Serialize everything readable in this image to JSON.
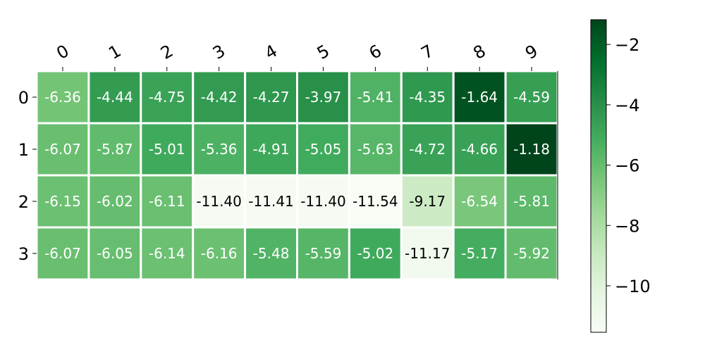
{
  "chart_data": {
    "type": "heatmap",
    "colormap": "Greens",
    "x_categories": [
      "0",
      "1",
      "2",
      "3",
      "4",
      "5",
      "6",
      "7",
      "8",
      "9"
    ],
    "y_categories": [
      "0",
      "1",
      "2",
      "3"
    ],
    "values": [
      [
        -6.36,
        -4.44,
        -4.75,
        -4.42,
        -4.27,
        -3.97,
        -5.41,
        -4.35,
        -1.64,
        -4.59
      ],
      [
        -6.07,
        -5.87,
        -5.01,
        -5.36,
        -4.91,
        -5.05,
        -5.63,
        -4.72,
        -4.66,
        -1.18
      ],
      [
        -6.15,
        -6.02,
        -6.11,
        -11.4,
        -11.41,
        -11.4,
        -11.54,
        -9.17,
        -6.54,
        -5.81
      ],
      [
        -6.07,
        -6.05,
        -6.14,
        -6.16,
        -5.48,
        -5.59,
        -5.02,
        -11.17,
        -5.17,
        -5.92
      ]
    ],
    "value_labels": [
      [
        "-6.36",
        "-4.44",
        "-4.75",
        "-4.42",
        "-4.27",
        "-3.97",
        "-5.41",
        "-4.35",
        "-1.64",
        "-4.59"
      ],
      [
        "-6.07",
        "-5.87",
        "-5.01",
        "-5.36",
        "-4.91",
        "-5.05",
        "-5.63",
        "-4.72",
        "-4.66",
        "-1.18"
      ],
      [
        "-6.15",
        "-6.02",
        "-6.11",
        "-11.40",
        "-11.41",
        "-11.40",
        "-11.54",
        "-9.17",
        "-6.54",
        "-5.81"
      ],
      [
        "-6.07",
        "-6.05",
        "-6.14",
        "-6.16",
        "-5.48",
        "-5.59",
        "-5.02",
        "-11.17",
        "-5.17",
        "-5.92"
      ]
    ],
    "x_tick_position": "top",
    "colorbar": {
      "range": [
        -11.54,
        -1.18
      ],
      "ticks": [
        -2,
        -4,
        -6,
        -8,
        -10
      ],
      "tick_labels": [
        "−2",
        "−4",
        "−6",
        "−8",
        "−10"
      ],
      "position": "right"
    },
    "grid": false
  }
}
